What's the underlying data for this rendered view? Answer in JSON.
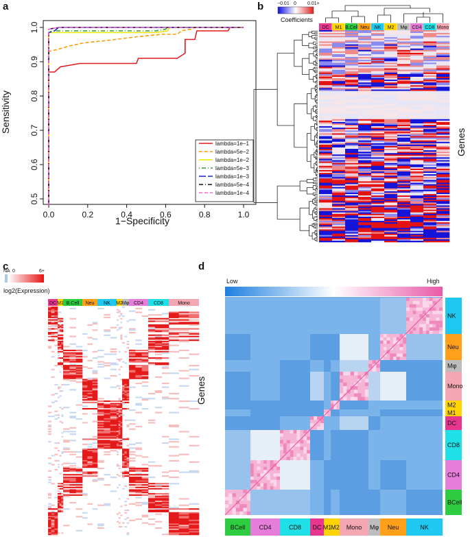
{
  "panels": {
    "a": "a",
    "b": "b",
    "c": "c",
    "d": "d"
  },
  "chart_data": [
    {
      "type": "line",
      "panel": "a",
      "title": "",
      "xlabel": "1−Specificity",
      "ylabel": "Sensitivity",
      "xlim": [
        0,
        1
      ],
      "ylim": [
        0.5,
        1
      ],
      "x_ticks": [
        "0.0",
        "0.2",
        "0.4",
        "0.6",
        "0.8",
        "1.0"
      ],
      "y_ticks": [
        "0.5",
        "0.6",
        "0.7",
        "0.8",
        "0.9",
        "1.0"
      ],
      "legend_position": "bottom-right",
      "series": [
        {
          "name": "lambda=1e−1",
          "color": "#e41a1c",
          "dash": "solid",
          "x": [
            0,
            0,
            0.03,
            0.06,
            0.16,
            0.45,
            0.46,
            0.66,
            0.7,
            0.7,
            0.75,
            0.76,
            0.92,
            0.93,
            1.0
          ],
          "y": [
            0.48,
            0.87,
            0.87,
            0.885,
            0.895,
            0.895,
            0.91,
            0.91,
            0.925,
            0.965,
            0.965,
            0.99,
            0.99,
            1.0,
            1.0
          ]
        },
        {
          "name": "lambda=5e−2",
          "color": "#ff9900",
          "dash": "dashed",
          "x": [
            0,
            0,
            0.04,
            0.1,
            0.18,
            0.3,
            0.44,
            0.58,
            0.66,
            0.68,
            0.73,
            0.75,
            1.0
          ],
          "y": [
            0.48,
            0.93,
            0.935,
            0.945,
            0.955,
            0.962,
            0.972,
            0.98,
            0.98,
            0.99,
            0.995,
            1.0,
            1.0
          ]
        },
        {
          "name": "lambda=1e−2",
          "color": "#e8e800",
          "dash": "solid",
          "x": [
            0,
            0,
            0.1,
            0.55,
            0.61,
            0.62,
            1.0
          ],
          "y": [
            0.48,
            0.985,
            0.985,
            0.985,
            0.99,
            1.0,
            1.0
          ]
        },
        {
          "name": "lambda=5e−3",
          "color": "#33a02c",
          "dash": "dotdash",
          "x": [
            0,
            0,
            0.02,
            0.55,
            0.6,
            0.61,
            1.0
          ],
          "y": [
            0.48,
            0.985,
            0.99,
            0.99,
            0.995,
            1.0,
            1.0
          ]
        },
        {
          "name": "lambda=1e−3",
          "color": "#1f1fd6",
          "dash": "longdash",
          "x": [
            0,
            0,
            0.03,
            0.05,
            1.0
          ],
          "y": [
            0.48,
            0.985,
            0.99,
            1.0,
            1.0
          ]
        },
        {
          "name": "lambda=5e−4",
          "color": "#111111",
          "dash": "dashdot",
          "x": [
            0,
            0,
            0.05,
            1.0
          ],
          "y": [
            0.48,
            0.995,
            1.0,
            1.0
          ]
        },
        {
          "name": "lambda=1e−4",
          "color": "#ff66cc",
          "dash": "dashed",
          "x": [
            0,
            0,
            0.05,
            1.0
          ],
          "y": [
            0.48,
            0.995,
            1.0,
            1.0
          ]
        }
      ]
    },
    {
      "type": "heatmap",
      "panel": "b",
      "legend_title": "Coefficients",
      "legend_ticks": [
        "−0.01",
        "0",
        "0.01+"
      ],
      "row_label": "Genes",
      "columns": [
        "DC",
        "M1",
        "B.Cell",
        "Neu",
        "NK",
        "M2",
        "Mφ",
        "CD4",
        "CD8",
        "Mono"
      ],
      "column_colors": [
        "#e8368f",
        "#ffd400",
        "#2ecc40",
        "#ff9f1a",
        "#1ec8f0",
        "#ffd400",
        "#bdbdbd",
        "#e67ddb",
        "#1fe0e6",
        "#f4a6b2"
      ]
    },
    {
      "type": "heatmap",
      "panel": "c",
      "legend_title": "log2(Expression)",
      "legend_ticks": [
        "NA",
        "0",
        "6+"
      ],
      "columns": [
        "DC",
        "M1",
        "B.Cell",
        "Neu",
        "NK",
        "M2",
        "Mφ",
        "CD4",
        "CD8",
        "Mono"
      ],
      "column_colors": [
        "#e8368f",
        "#ffd400",
        "#2ecc40",
        "#ff9f1a",
        "#1ec8f0",
        "#ffd400",
        "#bdbdbd",
        "#e67ddb",
        "#1fe0e6",
        "#f4a6b2"
      ]
    },
    {
      "type": "heatmap",
      "panel": "d",
      "legend_ticks": [
        "Low",
        "High"
      ],
      "row_label": "Genes",
      "row_groups": [
        "NK",
        "Neu",
        "Mφ",
        "Mono",
        "M2",
        "M1",
        "DC",
        "CD8",
        "CD4",
        "BCell"
      ],
      "column_groups": [
        "BCell",
        "CD4",
        "CD8",
        "DC",
        "M1",
        "M2",
        "Mono",
        "Mφ",
        "Neu",
        "NK"
      ],
      "group_colors": {
        "BCell": "#2ecc40",
        "CD4": "#e67ddb",
        "CD8": "#1fe0e6",
        "DC": "#e8368f",
        "M1": "#ffd400",
        "M2": "#ffd400",
        "Mono": "#f4a6b2",
        "Mφ": "#bdbdbd",
        "Neu": "#ff9f1a",
        "NK": "#1ec8f0"
      }
    }
  ]
}
